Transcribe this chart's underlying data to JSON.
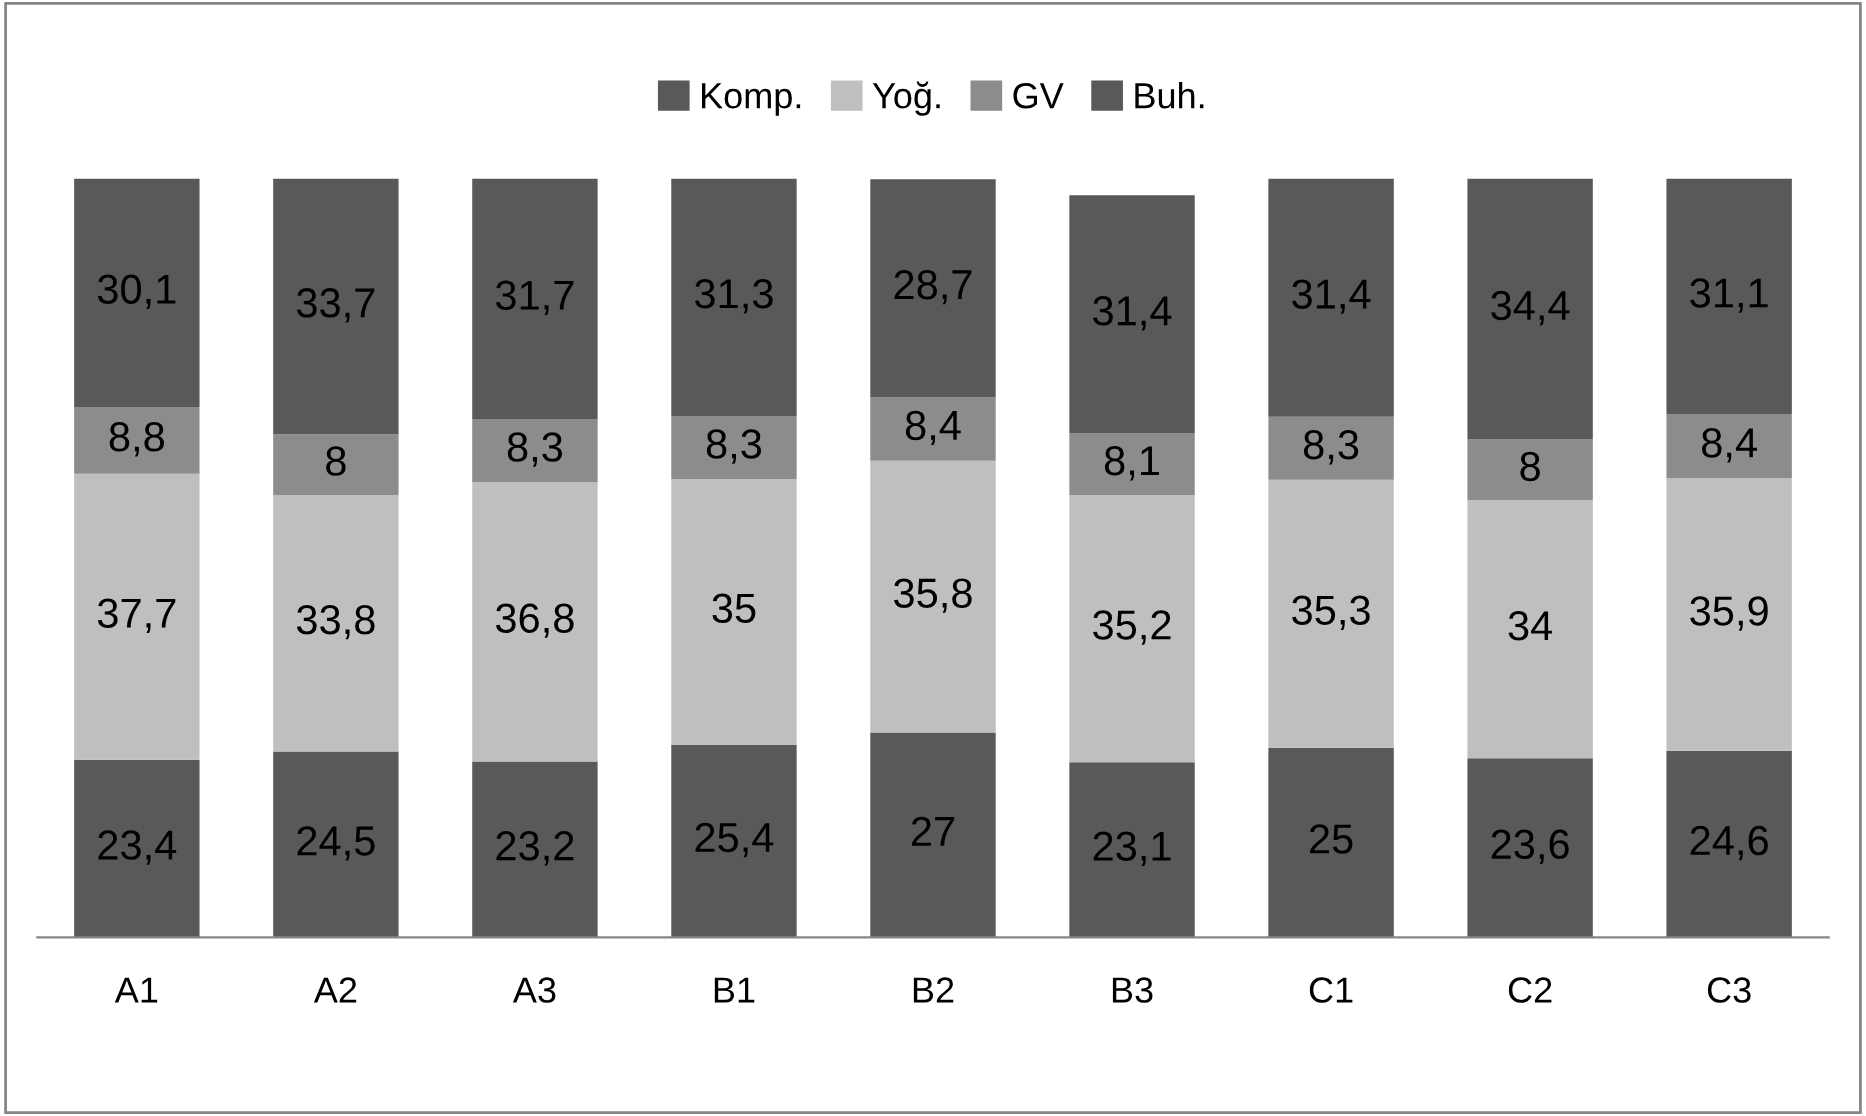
{
  "chart_data": {
    "type": "bar",
    "stacked": true,
    "legend": "top",
    "grid": false,
    "tick_labels": "x",
    "categories": [
      "A1",
      "A2",
      "A3",
      "B1",
      "B2",
      "B3",
      "C1",
      "C2",
      "C3"
    ],
    "series": [
      {
        "name": "Komp.",
        "color": "#595959",
        "values": [
          23.4,
          24.5,
          23.2,
          25.4,
          27,
          23.1,
          25,
          23.6,
          24.6
        ],
        "value_labels": [
          "23,4",
          "24,5",
          "23,2",
          "25,4",
          "27",
          "23,1",
          "25",
          "23,6",
          "24,6"
        ]
      },
      {
        "name": "Yoğ.",
        "color": "#bfbfbf",
        "values": [
          37.7,
          33.8,
          36.8,
          35,
          35.8,
          35.2,
          35.3,
          34,
          35.9
        ],
        "value_labels": [
          "37,7",
          "33,8",
          "36,8",
          "35",
          "35,8",
          "35,2",
          "35,3",
          "34",
          "35,9"
        ]
      },
      {
        "name": "GV",
        "color": "#8c8c8c",
        "values": [
          8.8,
          8,
          8.3,
          8.3,
          8.4,
          8.1,
          8.3,
          8,
          8.4
        ],
        "value_labels": [
          "8,8",
          "8",
          "8,3",
          "8,3",
          "8,4",
          "8,1",
          "8,3",
          "8",
          "8,4"
        ]
      },
      {
        "name": "Buh.",
        "color": "#595959",
        "values": [
          30.1,
          33.7,
          31.7,
          31.3,
          28.7,
          31.4,
          31.4,
          34.4,
          31.1
        ],
        "value_labels": [
          "30,1",
          "33,7",
          "31,7",
          "31,3",
          "28,7",
          "31,4",
          "31,4",
          "34,4",
          "31,1"
        ]
      }
    ]
  }
}
